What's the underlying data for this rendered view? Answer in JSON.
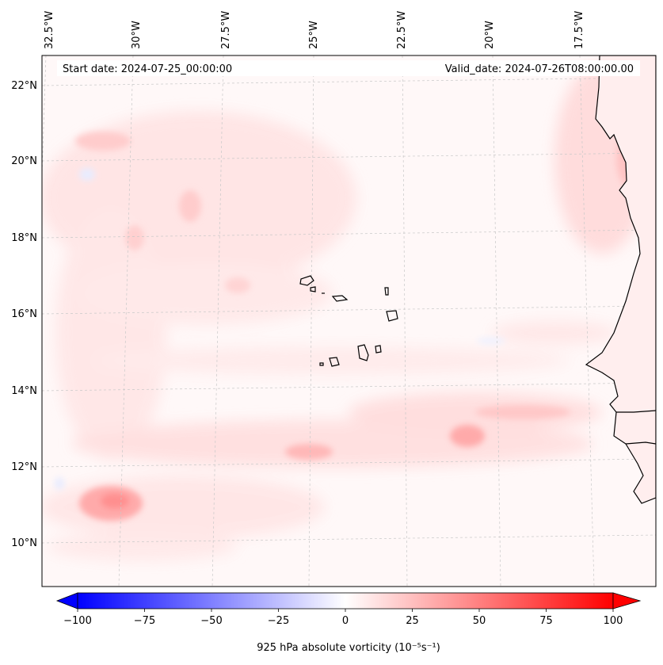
{
  "map": {
    "start_date_label": "Start date: 2024-07-25_00:00:00",
    "valid_date_label": "Valid_date: 2024-07-26T08:00:00.00",
    "longitude_labels": [
      "32.5°W",
      "30°W",
      "27.5°W",
      "25°W",
      "22.5°W",
      "20°W",
      "17.5°W"
    ],
    "latitude_labels": [
      "22°N",
      "20°N",
      "18°N",
      "16°N",
      "14°N",
      "12°N",
      "10°N"
    ],
    "land_outline_color": "#000000",
    "gridline_color": "#c8c8c8"
  },
  "colorbar": {
    "label": "925 hPa absolute vorticity (10⁻⁵s⁻¹)",
    "min": -100,
    "max": 100,
    "ticks": [
      "−100",
      "−75",
      "−50",
      "−25",
      "0",
      "25",
      "50",
      "75",
      "100"
    ],
    "tick_values": [
      -100,
      -75,
      -50,
      -25,
      0,
      25,
      50,
      75,
      100
    ],
    "negative_color": "#0000ff",
    "zero_color": "#ffffff",
    "positive_color": "#ff0000",
    "extend": "both"
  }
}
